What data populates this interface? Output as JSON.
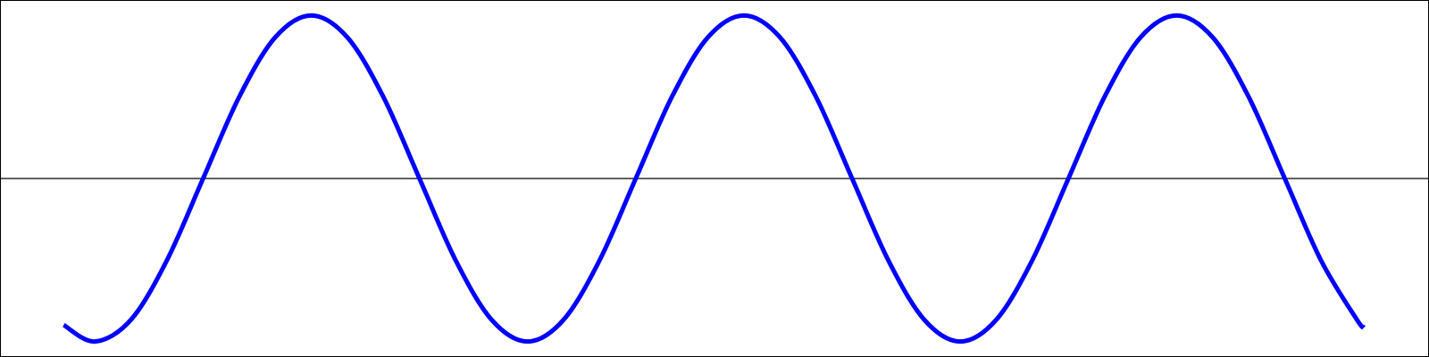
{
  "chart_data": {
    "type": "line",
    "x": [
      -26,
      0,
      30,
      60,
      90,
      120,
      150,
      180,
      210,
      240,
      270,
      300,
      330,
      360,
      390,
      420,
      450,
      480,
      510,
      540,
      570,
      600,
      630,
      660,
      690,
      720,
      750,
      780,
      810,
      840,
      870,
      900,
      930,
      960,
      990,
      1020,
      1050,
      1056
    ],
    "series": [
      {
        "color": "#0000ff",
        "values": [
          -0.899,
          -1,
          -0.866,
          -0.5,
          0,
          0.5,
          0.866,
          1,
          0.866,
          0.5,
          0,
          -0.5,
          -0.866,
          -1,
          -0.866,
          -0.5,
          0,
          0.5,
          0.866,
          1,
          0.866,
          0.5,
          0,
          -0.5,
          -0.866,
          -1,
          -0.866,
          -0.5,
          0,
          0.5,
          0.866,
          1,
          0.866,
          0.5,
          0,
          -0.5,
          -0.866,
          -0.914
        ]
      }
    ],
    "xlim": [
      -79,
      1110
    ],
    "ylim": [
      -1.095,
      1.095
    ],
    "axhline": 0,
    "frame": true
  }
}
